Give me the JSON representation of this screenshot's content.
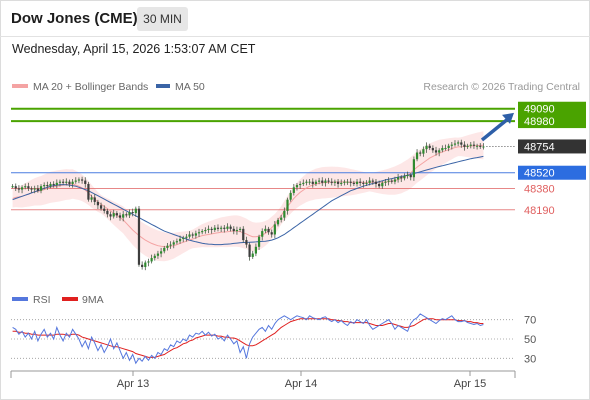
{
  "header": {
    "title": "Dow Jones (CME)",
    "timeframe": "30 MIN",
    "datetime": "Wednesday, April 15, 2026 1:53:07 AM CET"
  },
  "legend": {
    "ma20_label": "MA 20 + Bollinger Bands",
    "ma50_label": "MA 50",
    "credit": "Research © 2026 Trading Central",
    "rsi_label": "RSI",
    "rsi_ma_label": "9MA"
  },
  "colors": {
    "ma20": "#f4a3a3",
    "ma50": "#3a64a6",
    "bollinger_fill": "#fde3e3",
    "candle": "#2f8a2f",
    "target": "#4aa300",
    "support": "#4a7de0",
    "resistance_red": "#e06060",
    "current_price": "#333333",
    "rsi": "#5577dd",
    "rsi_ma": "#e0201f",
    "arrow": "#2e5fa8"
  },
  "chart_data": [
    {
      "type": "candlestick",
      "title": "Dow Jones (CME)",
      "x_ticks": [
        "Apr 13",
        "Apr 14",
        "Apr 15"
      ],
      "ylim": [
        47600,
        49150
      ],
      "levels": [
        {
          "value": 49090,
          "label": "49090",
          "kind": "target"
        },
        {
          "value": 48980,
          "label": "48980",
          "kind": "target"
        },
        {
          "value": 48754,
          "label": "48754",
          "kind": "current"
        },
        {
          "value": 48520,
          "label": "48520",
          "kind": "support"
        },
        {
          "value": 48380,
          "label": "48380",
          "kind": "resistance"
        },
        {
          "value": 48190,
          "label": "48190",
          "kind": "resistance"
        }
      ],
      "close": [
        48400,
        48380,
        48370,
        48390,
        48400,
        48380,
        48370,
        48380,
        48360,
        48400,
        48410,
        48400,
        48420,
        48410,
        48430,
        48440,
        48430,
        48440,
        48420,
        48440,
        48450,
        48460,
        48450,
        48420,
        48280,
        48300,
        48260,
        48230,
        48200,
        48180,
        48150,
        48130,
        48160,
        48140,
        48120,
        48150,
        48140,
        48170,
        48160,
        48200,
        47700,
        47680,
        47720,
        47730,
        47760,
        47780,
        47800,
        47820,
        47850,
        47870,
        47880,
        47900,
        47910,
        47930,
        47940,
        47950,
        47970,
        47960,
        47980,
        47990,
        48000,
        48010,
        48020,
        48010,
        48030,
        48020,
        48030,
        48020,
        48040,
        48020,
        48000,
        48010,
        48020,
        47920,
        47880,
        47770,
        47800,
        47860,
        47950,
        48000,
        48020,
        47990,
        47970,
        48060,
        48100,
        48120,
        48180,
        48280,
        48340,
        48390,
        48410,
        48420,
        48430,
        48440,
        48440,
        48420,
        48440,
        48450,
        48430,
        48450,
        48440,
        48430,
        48440,
        48420,
        48430,
        48440,
        48440,
        48430,
        48420,
        48440,
        48430,
        48420,
        48430,
        48450,
        48440,
        48420,
        48400,
        48430,
        48440,
        48450,
        48440,
        48460,
        48480,
        48470,
        48490,
        48500,
        48480,
        48640,
        48700,
        48690,
        48730,
        48760,
        48740,
        48720,
        48700,
        48720,
        48740,
        48740,
        48760,
        48770,
        48780,
        48790,
        48770,
        48750,
        48760,
        48770,
        48760,
        48760,
        48750,
        48754
      ],
      "ma20": [
        48290,
        48300,
        48305,
        48310,
        48320,
        48330,
        48340,
        48350,
        48355,
        48360,
        48370,
        48380,
        48390,
        48395,
        48400,
        48405,
        48410,
        48415,
        48415,
        48420,
        48410,
        48400,
        48385,
        48365,
        48340,
        48310,
        48285,
        48260,
        48240,
        48220,
        48200,
        48180,
        48160,
        48140,
        48120,
        48100,
        48070,
        48040,
        48010,
        47985,
        47960,
        47940,
        47920,
        47905,
        47890,
        47880,
        47870,
        47865,
        47860,
        47860,
        47865,
        47870,
        47880,
        47890,
        47900,
        47910,
        47920,
        47930,
        47940,
        47950,
        47960,
        47965,
        47970,
        47975,
        47980,
        47985,
        47990,
        47992,
        47995,
        47998,
        48000,
        48000,
        47995,
        47985,
        47975,
        47960,
        47950,
        47950,
        47955,
        47965,
        47980,
        48000,
        48030,
        48060,
        48100,
        48140,
        48180,
        48220,
        48255,
        48290,
        48320,
        48345,
        48365,
        48385,
        48400,
        48410,
        48420,
        48425,
        48430,
        48432,
        48434,
        48436,
        48437,
        48438,
        48438,
        48438,
        48437,
        48436,
        48435,
        48435,
        48435,
        48434,
        48434,
        48434,
        48434,
        48434,
        48435,
        48436,
        48438,
        48440,
        48445,
        48450,
        48460,
        48470,
        48485,
        48500,
        48520,
        48545,
        48570,
        48590,
        48610,
        48630,
        48650,
        48665,
        48680,
        48695,
        48705,
        48715,
        48725,
        48735,
        48745,
        48750,
        48752,
        48754,
        48756,
        48758,
        48760,
        48762,
        48763,
        48764
      ],
      "ma50": [
        48280,
        48290,
        48300,
        48310,
        48320,
        48330,
        48340,
        48350,
        48360,
        48370,
        48380,
        48390,
        48398,
        48405,
        48410,
        48412,
        48414,
        48412,
        48410,
        48405,
        48400,
        48390,
        48380,
        48370,
        48360,
        48345,
        48330,
        48315,
        48300,
        48285,
        48270,
        48255,
        48240,
        48225,
        48210,
        48195,
        48180,
        48165,
        48150,
        48135,
        48120,
        48105,
        48090,
        48075,
        48060,
        48045,
        48030,
        48015,
        48000,
        47990,
        47980,
        47970,
        47960,
        47950,
        47940,
        47930,
        47920,
        47912,
        47905,
        47898,
        47892,
        47888,
        47884,
        47882,
        47880,
        47880,
        47880,
        47882,
        47884,
        47886,
        47890,
        47893,
        47896,
        47898,
        47899,
        47900,
        47902,
        47904,
        47906,
        47908,
        47910,
        47914,
        47920,
        47930,
        47940,
        47955,
        47970,
        47990,
        48010,
        48030,
        48050,
        48070,
        48090,
        48110,
        48130,
        48150,
        48170,
        48190,
        48210,
        48230,
        48250,
        48270,
        48285,
        48300,
        48315,
        48330,
        48345,
        48360,
        48370,
        48380,
        48390,
        48400,
        48408,
        48416,
        48424,
        48432,
        48440,
        48448,
        48456,
        48462,
        48468,
        48474,
        48480,
        48486,
        48492,
        48498,
        48504,
        48512,
        48520,
        48528,
        48536,
        48544,
        48552,
        48560,
        48568,
        48575,
        48582,
        48589,
        48596,
        48603,
        48610,
        48617,
        48624,
        48631,
        48638,
        48645,
        48650,
        48655,
        48660,
        48665
      ]
    },
    {
      "type": "line",
      "title": "RSI",
      "ylim": [
        20,
        80
      ],
      "y_ticks": [
        70,
        50,
        30
      ],
      "series": [
        {
          "name": "RSI",
          "values": [
            62,
            60,
            55,
            58,
            52,
            56,
            50,
            58,
            48,
            55,
            60,
            52,
            56,
            50,
            62,
            54,
            48,
            56,
            52,
            60,
            55,
            50,
            42,
            48,
            40,
            52,
            46,
            38,
            44,
            36,
            42,
            50,
            40,
            46,
            38,
            30,
            36,
            28,
            34,
            25,
            30,
            27,
            32,
            28,
            33,
            30,
            36,
            34,
            40,
            38,
            44,
            42,
            48,
            46,
            50,
            48,
            54,
            52,
            56,
            55,
            58,
            54,
            57,
            53,
            55,
            50,
            52,
            48,
            54,
            50,
            45,
            48,
            36,
            42,
            30,
            45,
            52,
            56,
            60,
            62,
            58,
            64,
            60,
            66,
            70,
            72,
            74,
            72,
            70,
            72,
            74,
            73,
            72,
            70,
            74,
            72,
            71,
            70,
            72,
            73,
            70,
            68,
            70,
            67,
            69,
            66,
            64,
            68,
            66,
            70,
            68,
            66,
            70,
            64,
            60,
            62,
            64,
            66,
            68,
            70,
            66,
            60,
            64,
            62,
            60,
            58,
            66,
            70,
            72,
            76,
            74,
            72,
            70,
            68,
            66,
            69,
            71,
            70,
            72,
            74,
            70,
            68,
            68,
            69,
            67,
            66,
            65,
            66,
            64,
            65
          ]
        },
        {
          "name": "9MA",
          "values": [
            58,
            58,
            57,
            57,
            56,
            56,
            55,
            55,
            54,
            54,
            54,
            54,
            54,
            54,
            55,
            55,
            55,
            54,
            54,
            55,
            55,
            54,
            52,
            51,
            50,
            49,
            48,
            47,
            46,
            45,
            44,
            43,
            42,
            42,
            41,
            40,
            39,
            38,
            37,
            35,
            34,
            33,
            32,
            31,
            31,
            31,
            32,
            33,
            34,
            36,
            38,
            40,
            41,
            43,
            45,
            46,
            48,
            49,
            51,
            52,
            53,
            54,
            54,
            54,
            54,
            53,
            53,
            52,
            52,
            51,
            51,
            50,
            48,
            46,
            44,
            43,
            43,
            44,
            46,
            48,
            50,
            52,
            54,
            56,
            59,
            62,
            64,
            66,
            68,
            69,
            70,
            71,
            71,
            71,
            71,
            71,
            71,
            71,
            71,
            71,
            71,
            70,
            70,
            69,
            69,
            68,
            68,
            67,
            67,
            67,
            67,
            67,
            67,
            66,
            65,
            64,
            64,
            64,
            65,
            66,
            66,
            65,
            64,
            63,
            62,
            62,
            63,
            64,
            66,
            68,
            70,
            71,
            71,
            71,
            70,
            70,
            70,
            70,
            70,
            70,
            70,
            69,
            69,
            69,
            68,
            68,
            67,
            67,
            66,
            66
          ]
        }
      ]
    }
  ]
}
